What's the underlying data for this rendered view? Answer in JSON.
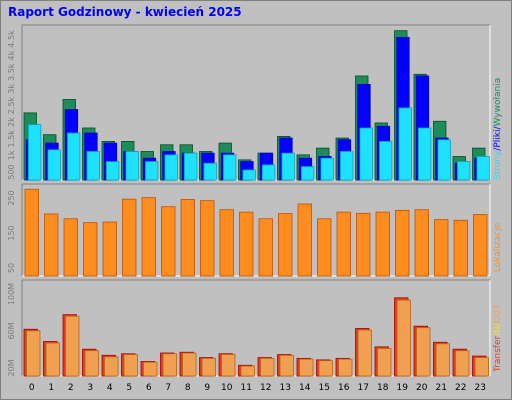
{
  "title": "Raport Godzinowy -  kwiecień 2025",
  "colors": {
    "background": "#c0c0c0",
    "plot": "#c0c0c0",
    "title": "#0000ff",
    "strony": "#1e8c5a",
    "pliki": "#0000ff",
    "wywolania": "#1ee1ff",
    "lokalizacje": "#ff8c1e",
    "transfer_in": "#e63c1e",
    "transfer_out": "#f0a050"
  },
  "chart_data": [
    {
      "type": "bar",
      "categories": [
        "0",
        "1",
        "2",
        "3",
        "4",
        "5",
        "6",
        "7",
        "8",
        "9",
        "10",
        "11",
        "12",
        "13",
        "14",
        "15",
        "16",
        "17",
        "18",
        "19",
        "20",
        "21",
        "22",
        "23"
      ],
      "ylim": [
        0,
        4500
      ],
      "yticks": [
        "4.5k",
        "4k",
        "3.5k",
        "3k",
        "2.5k",
        "2k",
        "1.5k",
        "1k",
        "500"
      ],
      "legend": [
        {
          "label": "Strony",
          "colorKey": "strony"
        },
        {
          "label": "/",
          "colorKey": "pliki"
        },
        {
          "label": "Pliki",
          "colorKey": "pliki"
        },
        {
          "label": "/",
          "colorKey": "pliki"
        },
        {
          "label": "Wywołania",
          "colorKey": "strony"
        }
      ],
      "series": [
        {
          "name": "Strony",
          "values": [
            2000,
            1350,
            2400,
            1550,
            1150,
            1150,
            850,
            1050,
            1050,
            850,
            1100,
            600,
            800,
            1300,
            750,
            950,
            1250,
            3100,
            1700,
            4450,
            3150,
            1750,
            700,
            950
          ]
        },
        {
          "name": "Pliki",
          "values": [
            1200,
            1100,
            2100,
            1400,
            1100,
            850,
            650,
            850,
            800,
            800,
            800,
            550,
            800,
            1250,
            650,
            700,
            1200,
            2850,
            1600,
            4250,
            3100,
            1250,
            500,
            650
          ]
        },
        {
          "name": "Wywołania",
          "values": [
            1650,
            900,
            1400,
            850,
            550,
            850,
            550,
            750,
            800,
            500,
            750,
            300,
            450,
            800,
            400,
            650,
            850,
            1550,
            1150,
            2150,
            1550,
            1200,
            550,
            700
          ]
        }
      ]
    },
    {
      "type": "bar",
      "categories": [
        "0",
        "1",
        "2",
        "3",
        "4",
        "5",
        "6",
        "7",
        "8",
        "9",
        "10",
        "11",
        "12",
        "13",
        "14",
        "15",
        "16",
        "17",
        "18",
        "19",
        "20",
        "21",
        "22",
        "23"
      ],
      "ylim": [
        0,
        292
      ],
      "yticks": [
        "250",
        "150",
        "50"
      ],
      "legend": [
        {
          "label": "Lokalizacje",
          "colorKey": "lokalizacje"
        }
      ],
      "series": [
        {
          "name": "Lokalizacje",
          "values": [
            288,
            206,
            190,
            177,
            179,
            255,
            260,
            230,
            254,
            250,
            220,
            212,
            190,
            207,
            239,
            190,
            212,
            208,
            212,
            218,
            220,
            187,
            185,
            204
          ]
        }
      ]
    },
    {
      "type": "bar",
      "categories": [
        "0",
        "1",
        "2",
        "3",
        "4",
        "5",
        "6",
        "7",
        "8",
        "9",
        "10",
        "11",
        "12",
        "13",
        "14",
        "15",
        "16",
        "17",
        "18",
        "19",
        "20",
        "21",
        "22",
        "23"
      ],
      "ylim": [
        0,
        120
      ],
      "yticks": [
        "100M",
        "60M",
        "20M"
      ],
      "legend": [
        {
          "label": "Transfer",
          "colorKey": "transfer_in"
        },
        {
          "label": "IN",
          "colorKey": "title"
        },
        {
          "label": "/",
          "colorKey": "title"
        },
        {
          "label": "OUT",
          "colorKey": "transfer_out"
        }
      ],
      "series": [
        {
          "name": "IN",
          "values": [
            61,
            45,
            80,
            35,
            27,
            29,
            19,
            30,
            31,
            24,
            29,
            14,
            24,
            28,
            23,
            21,
            23,
            62,
            38,
            102,
            65,
            44,
            35,
            26
          ]
        },
        {
          "name": "OUT",
          "values": [
            59,
            43,
            78,
            33,
            25,
            28,
            18,
            29,
            30,
            23,
            28,
            13,
            23,
            27,
            22,
            20,
            22,
            60,
            36,
            99,
            63,
            42,
            33,
            24
          ]
        }
      ]
    }
  ]
}
